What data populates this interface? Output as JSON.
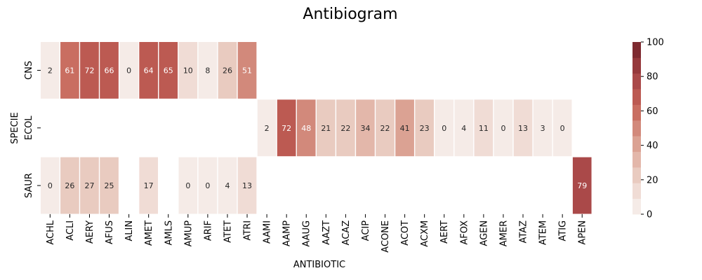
{
  "chart_data": {
    "type": "heatmap",
    "title": "Antibiogram",
    "xlabel": "ANTIBIOTIC",
    "ylabel": "SPECIE",
    "rows": [
      "CNS",
      "ECOL",
      "SAUR"
    ],
    "columns": [
      "ACHL",
      "ACLI",
      "AERY",
      "AFUS",
      "ALIN",
      "AMET",
      "AMLS",
      "AMUP",
      "ARIF",
      "ATET",
      "ATRI",
      "AAMI",
      "AAMP",
      "AAUG",
      "AAZT",
      "ACAZ",
      "ACIP",
      "ACONE",
      "ACOT",
      "ACXM",
      "AERT",
      "AFOX",
      "AGEN",
      "AMER",
      "ATAZ",
      "ATEM",
      "ATIG",
      "APEN"
    ],
    "values": [
      [
        2,
        61,
        72,
        66,
        0,
        64,
        65,
        10,
        8,
        26,
        51,
        null,
        null,
        null,
        null,
        null,
        null,
        null,
        null,
        null,
        null,
        null,
        null,
        null,
        null,
        null,
        null,
        null
      ],
      [
        null,
        null,
        null,
        null,
        null,
        null,
        null,
        null,
        null,
        null,
        null,
        2,
        72,
        48,
        21,
        22,
        34,
        22,
        41,
        23,
        0,
        4,
        11,
        0,
        13,
        3,
        0,
        null
      ],
      [
        0,
        26,
        27,
        25,
        null,
        17,
        null,
        0,
        0,
        4,
        13,
        null,
        null,
        null,
        null,
        null,
        null,
        null,
        null,
        null,
        null,
        null,
        null,
        null,
        null,
        null,
        null,
        79
      ]
    ],
    "colorbar": {
      "range": [
        0,
        100
      ],
      "ticks": [
        0,
        20,
        40,
        60,
        80,
        100
      ],
      "bins": 11,
      "colors": [
        "#f5ebe7",
        "#f0dcd5",
        "#e9cbc0",
        "#e3b7aa",
        "#dba293",
        "#d2897b",
        "#c96e61",
        "#bc5a52",
        "#aa4949",
        "#96393c",
        "#7e2a30"
      ]
    }
  }
}
